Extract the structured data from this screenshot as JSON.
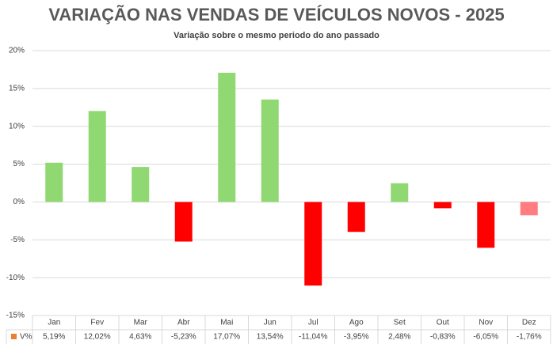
{
  "chart_data": {
    "type": "bar",
    "title": "VARIAÇÃO NAS VENDAS DE VEÍCULOS NOVOS - 2025",
    "subtitle": "Variação sobre o mesmo periodo do ano passado",
    "categories": [
      "Jan",
      "Fev",
      "Mar",
      "Abr",
      "Mai",
      "Jun",
      "Jul",
      "Ago",
      "Set",
      "Out",
      "Nov",
      "Dez"
    ],
    "series": [
      {
        "name": "V%",
        "color": "#ed7d31",
        "values": [
          5.19,
          12.02,
          4.63,
          -5.23,
          17.07,
          13.54,
          -11.04,
          -3.95,
          2.48,
          -0.83,
          -6.05,
          -1.76
        ],
        "value_labels": [
          "5,19%",
          "12,02%",
          "4,63%",
          "-5,23%",
          "17,07%",
          "13,54%",
          "-11,04%",
          "-3,95%",
          "2,48%",
          "-0,83%",
          "-6,05%",
          "-1,76%"
        ],
        "colors": [
          "#8fd872",
          "#8fd872",
          "#8fd872",
          "#ff0000",
          "#8fd872",
          "#8fd872",
          "#ff0000",
          "#ff0000",
          "#8fd872",
          "#ff0000",
          "#ff0000",
          "#ff7c80"
        ]
      }
    ],
    "ylim": [
      -15,
      20
    ],
    "yticks": [
      {
        "value": -15,
        "label": "-15%"
      },
      {
        "value": -10,
        "label": "-10%"
      },
      {
        "value": -5,
        "label": "-5%"
      },
      {
        "value": 0,
        "label": "0%"
      },
      {
        "value": 5,
        "label": "5%"
      },
      {
        "value": 10,
        "label": "10%"
      },
      {
        "value": 15,
        "label": "15%"
      },
      {
        "value": 20,
        "label": "20%"
      }
    ],
    "grid": true
  }
}
